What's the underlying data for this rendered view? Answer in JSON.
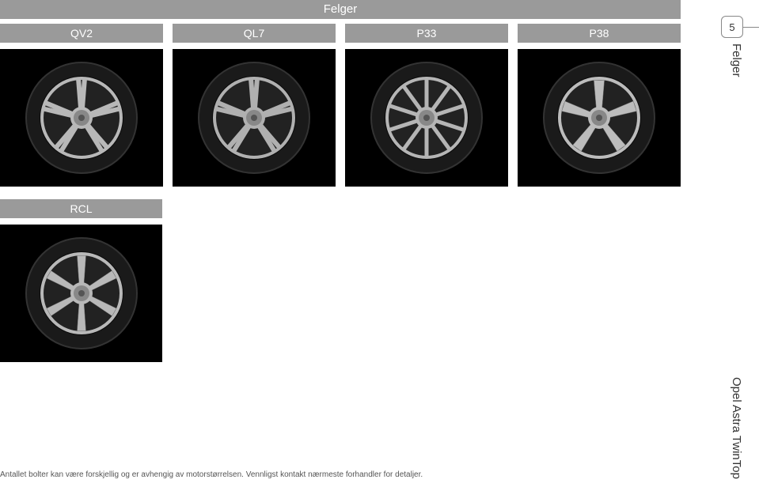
{
  "header": {
    "title": "Felger"
  },
  "page_number": "5",
  "side_label_top": "Felger",
  "side_label_bottom": "Opel Astra TwinTop",
  "wheels_row1": [
    {
      "code": "QV2",
      "spokes": 5,
      "spoke_type": "double",
      "color": "#b8b8b8"
    },
    {
      "code": "QL7",
      "spokes": 5,
      "spoke_type": "double",
      "color": "#b0b0b0"
    },
    {
      "code": "P33",
      "spokes": 10,
      "spoke_type": "thin",
      "color": "#b5b5b5"
    },
    {
      "code": "P38",
      "spokes": 5,
      "spoke_type": "wide",
      "color": "#bcbcbc"
    }
  ],
  "wheels_row2": [
    {
      "code": "RCL",
      "spokes": 6,
      "spoke_type": "wide",
      "color": "#b8b8b8"
    }
  ],
  "footnote": "Antallet bolter kan være forskjellig og er avhengig av motorstørrelsen. Vennligst kontakt nærmeste forhandler for detaljer."
}
